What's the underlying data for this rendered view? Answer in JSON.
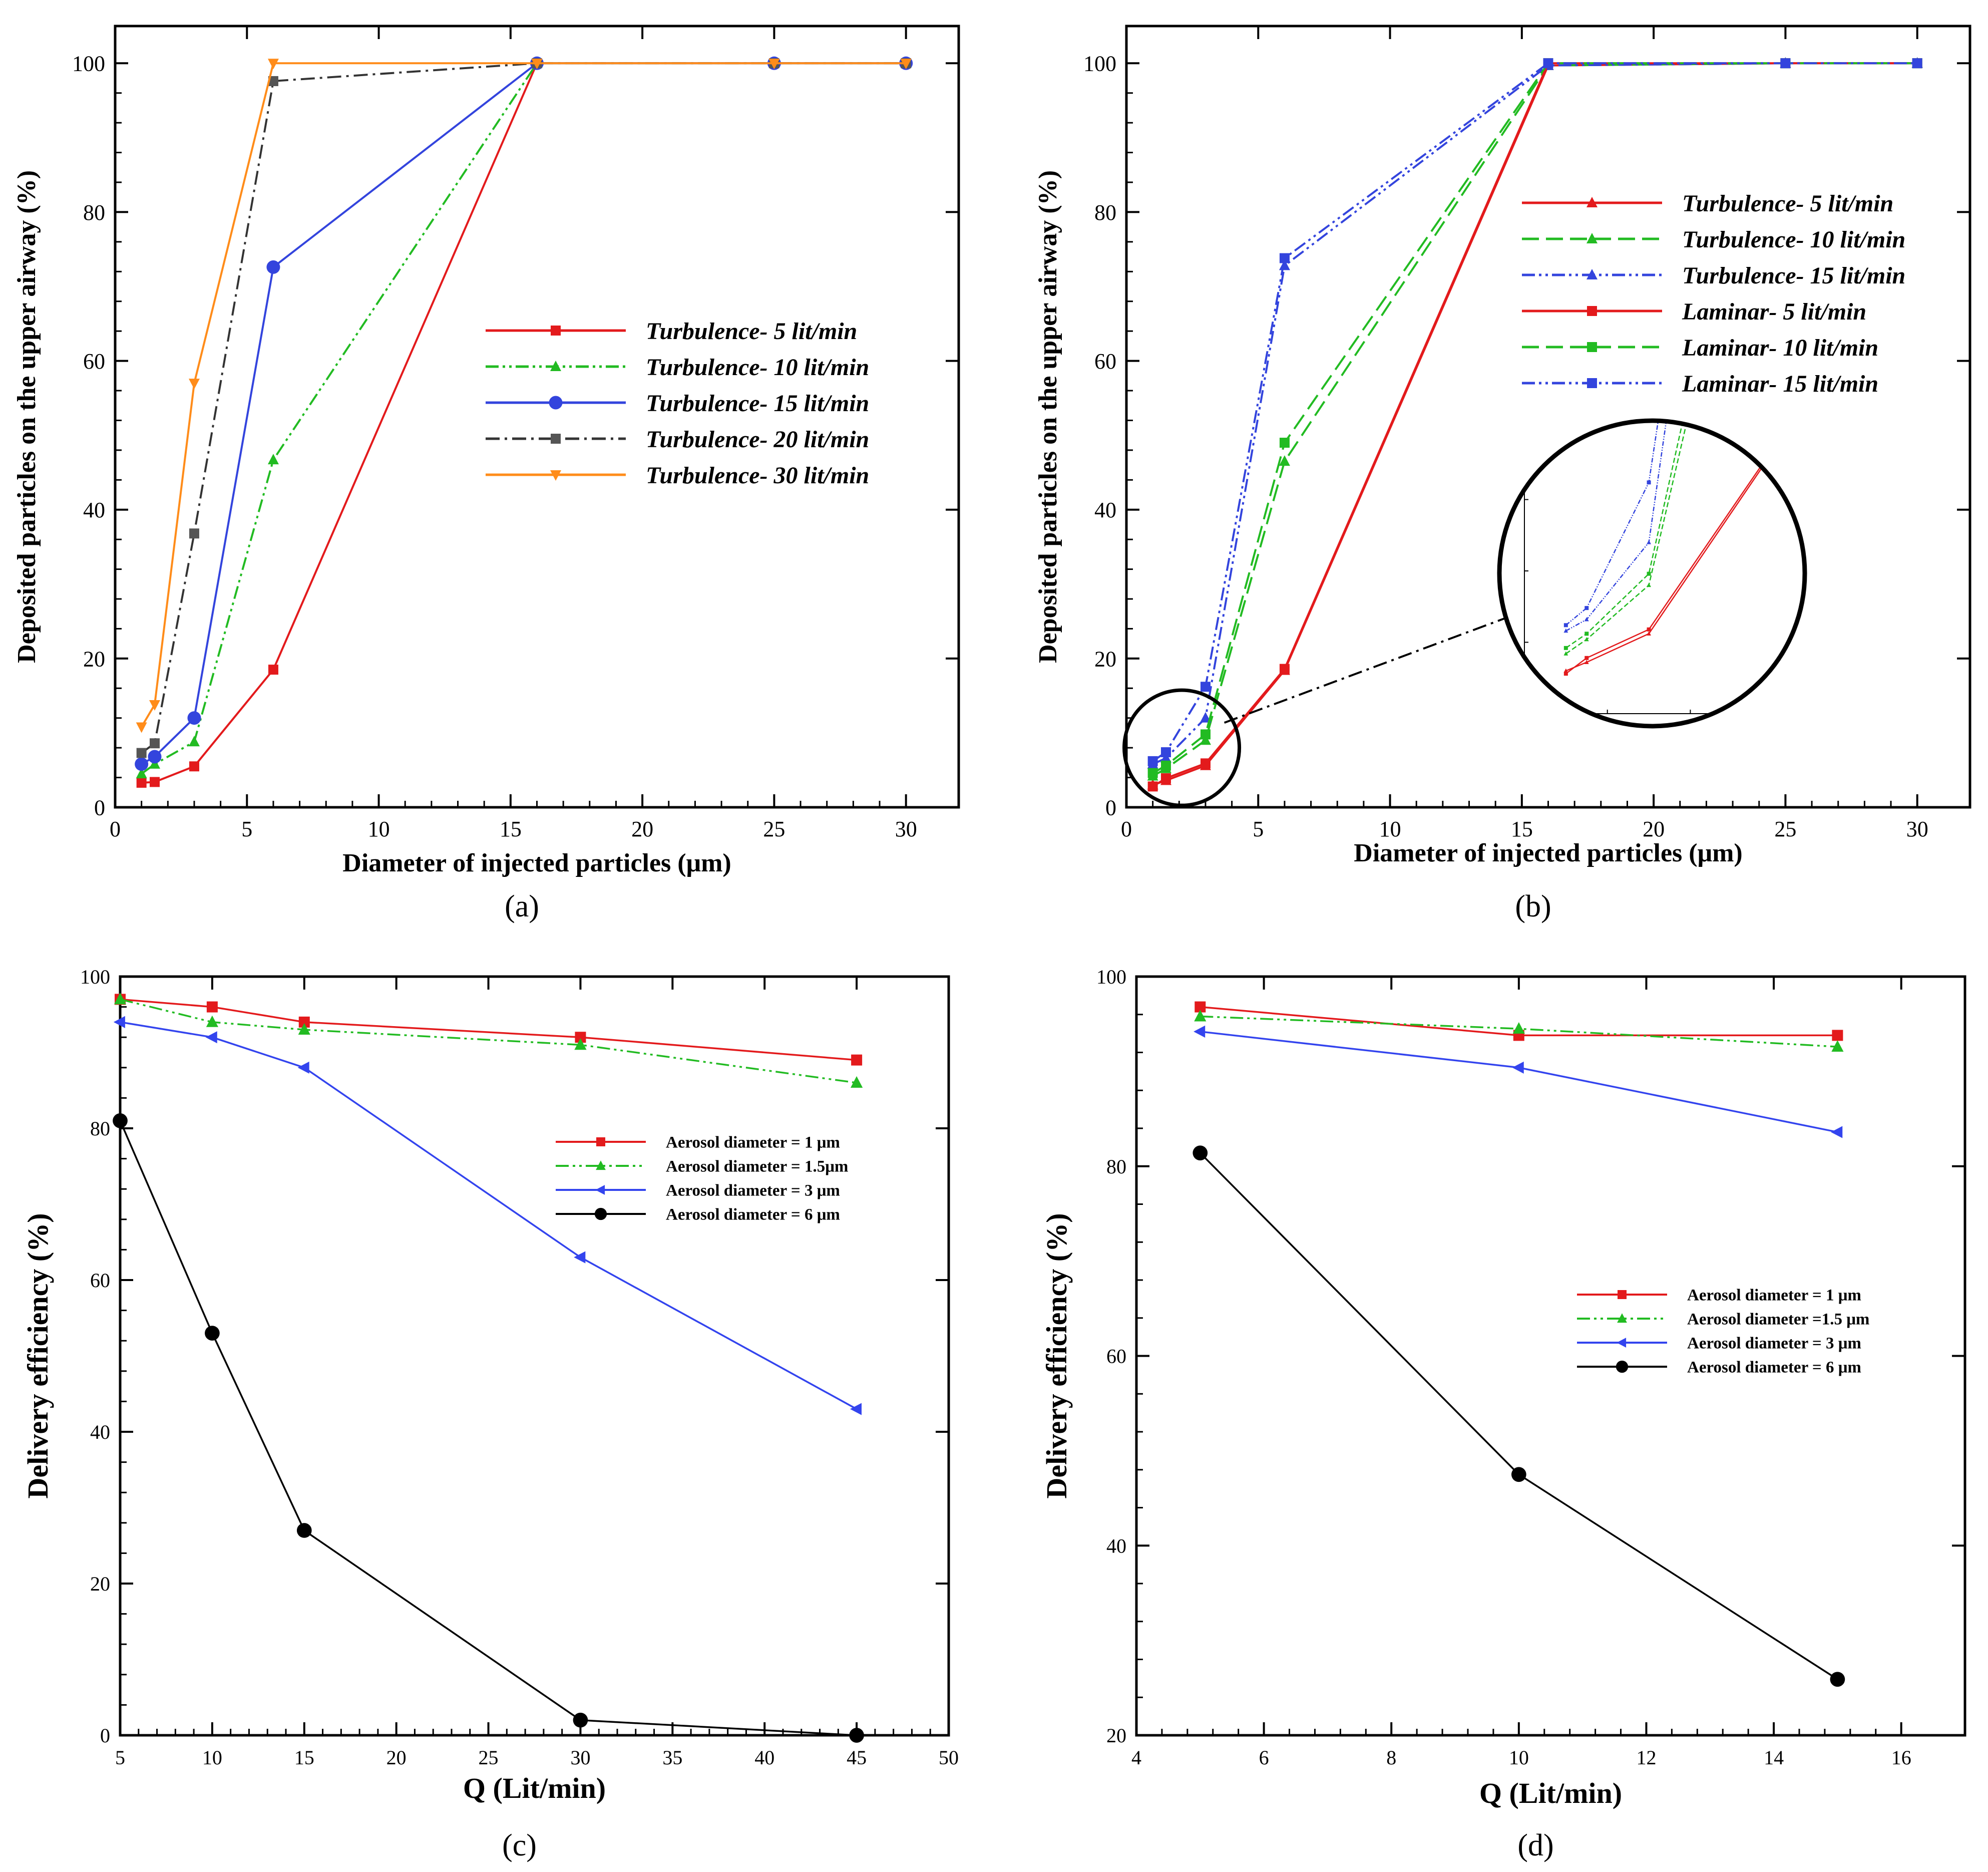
{
  "chart_data": [
    {
      "type": "line",
      "panel_label": "(a)",
      "xlabel": "Diameter of injected particles (μm)",
      "ylabel": "Deposited particles on the upper airway (%)",
      "xlim": [
        0,
        32
      ],
      "ylim": [
        0,
        105
      ],
      "xticks": [
        0,
        5,
        10,
        15,
        20,
        25,
        30
      ],
      "yticks": [
        0,
        20,
        40,
        60,
        80,
        100
      ],
      "legend_position": "center-right",
      "legend_style": "bold-italic",
      "series": [
        {
          "name": "Turbulence-  5 lit/min",
          "color": "#e31a1c",
          "marker": "square",
          "dash": "solid",
          "x": [
            1,
            1.5,
            3,
            6,
            16,
            25,
            30
          ],
          "y": [
            3.3,
            3.4,
            5.5,
            18.5,
            100,
            100,
            100
          ]
        },
        {
          "name": "Turbulence- 10 lit/min",
          "color": "#22bb22",
          "marker": "triangle-up",
          "dash": "dashdotdot",
          "x": [
            1,
            1.5,
            3,
            6,
            16,
            25,
            30
          ],
          "y": [
            4.5,
            5.8,
            8.8,
            46.7,
            100,
            100,
            100
          ]
        },
        {
          "name": "Turbulence- 15 lit/min",
          "color": "#3344dd",
          "marker": "circle",
          "dash": "solid",
          "x": [
            1,
            1.5,
            3,
            6,
            16,
            25,
            30
          ],
          "y": [
            5.8,
            6.8,
            12,
            72.6,
            100,
            100,
            100
          ]
        },
        {
          "name": "Turbulence- 20 lit/min",
          "color": "#333333",
          "marker": "square-gray",
          "dash": "dashdot",
          "x": [
            1,
            1.5,
            3,
            6,
            16,
            25,
            30
          ],
          "y": [
            7.3,
            8.6,
            36.8,
            97.6,
            100,
            100,
            100
          ]
        },
        {
          "name": "Turbulence- 30 lit/min",
          "color": "#ff8c1a",
          "marker": "triangle-down",
          "dash": "solid",
          "x": [
            1,
            1.5,
            3,
            6,
            16,
            25,
            30
          ],
          "y": [
            10.8,
            13.8,
            57,
            100,
            100,
            100,
            100
          ]
        }
      ]
    },
    {
      "type": "line",
      "panel_label": "(b)",
      "xlabel": "Diameter of injected particles (μm)",
      "ylabel": "Deposited particles on the upper airway (%)",
      "xlim": [
        0,
        32
      ],
      "ylim": [
        0,
        105
      ],
      "xticks": [
        0,
        5,
        10,
        15,
        20,
        25,
        30
      ],
      "yticks": [
        0,
        20,
        40,
        60,
        80,
        100
      ],
      "legend_position": "upper-right",
      "legend_style": "bold-italic",
      "inset": "magnified view of region around 1-3 μm",
      "series": [
        {
          "name": "Turbulence-  5 lit/min",
          "color": "#e31a1c",
          "marker": "triangle-up",
          "dash": "solid",
          "x": [
            1,
            1.5,
            3,
            6,
            16,
            25,
            30
          ],
          "y": [
            3.0,
            3.6,
            5.6,
            18.4,
            99.7,
            100,
            100
          ]
        },
        {
          "name": "Turbulence- 10 lit/min",
          "color": "#22bb22",
          "marker": "triangle-up",
          "dash": "longdash",
          "x": [
            1,
            1.5,
            3,
            6,
            16,
            25,
            30
          ],
          "y": [
            4.2,
            5.2,
            9.0,
            46.5,
            99.7,
            100,
            100
          ]
        },
        {
          "name": "Turbulence- 15 lit/min",
          "color": "#3344dd",
          "marker": "triangle-up",
          "dash": "dashdotdot",
          "x": [
            1,
            1.5,
            3,
            6,
            16,
            25,
            30
          ],
          "y": [
            5.8,
            6.6,
            12.0,
            72.8,
            99.7,
            100,
            100
          ]
        },
        {
          "name": "Laminar- 5 lit/min",
          "color": "#e31a1c",
          "marker": "square",
          "dash": "solid",
          "x": [
            1,
            1.5,
            3,
            6,
            16,
            25,
            30
          ],
          "y": [
            2.8,
            3.9,
            5.9,
            18.6,
            100,
            100,
            100
          ]
        },
        {
          "name": "Laminar- 10 lit/min",
          "color": "#22bb22",
          "marker": "square",
          "dash": "longdash",
          "x": [
            1,
            1.5,
            3,
            6,
            16,
            25,
            30
          ],
          "y": [
            4.6,
            5.6,
            9.8,
            49.0,
            100,
            100,
            100
          ]
        },
        {
          "name": "Laminar- 15 lit/min",
          "color": "#3344dd",
          "marker": "square",
          "dash": "dashdotdot",
          "x": [
            1,
            1.5,
            3,
            6,
            16,
            25,
            30
          ],
          "y": [
            6.2,
            7.4,
            16.2,
            73.8,
            100,
            100,
            100
          ]
        }
      ]
    },
    {
      "type": "line",
      "panel_label": "(c)",
      "xlabel": "Q (Lit/min)",
      "ylabel": "Delivery efficiency (%)",
      "xlim": [
        5,
        50
      ],
      "ylim": [
        0,
        100
      ],
      "xticks": [
        5,
        10,
        15,
        20,
        25,
        30,
        35,
        40,
        45,
        50
      ],
      "yticks": [
        0,
        20,
        40,
        60,
        80,
        100
      ],
      "legend_position": "upper-right",
      "legend_style": "bold",
      "series": [
        {
          "name": "Aerosol diameter = 1   μm",
          "color": "#e31a1c",
          "marker": "square",
          "dash": "solid",
          "x": [
            5,
            10,
            15,
            30,
            45
          ],
          "y": [
            97,
            96,
            94,
            92,
            89
          ]
        },
        {
          "name": "Aerosol diameter = 1.5μm",
          "color": "#22bb22",
          "marker": "triangle-up",
          "dash": "dashdotdot",
          "x": [
            5,
            10,
            15,
            30,
            45
          ],
          "y": [
            97,
            94,
            93,
            91,
            86
          ]
        },
        {
          "name": "Aerosol diameter = 3   μm",
          "color": "#3344ee",
          "marker": "triangle-left",
          "dash": "solid",
          "x": [
            5,
            10,
            15,
            30,
            45
          ],
          "y": [
            94,
            92,
            88,
            63,
            43
          ]
        },
        {
          "name": "Aerosol diameter = 6   μm",
          "color": "#000000",
          "marker": "circle",
          "dash": "solid",
          "x": [
            5,
            10,
            15,
            30,
            45
          ],
          "y": [
            81,
            53,
            27,
            2,
            0
          ]
        }
      ]
    },
    {
      "type": "line",
      "panel_label": "(d)",
      "xlabel": "Q (Lit/min)",
      "ylabel": "Delivery efficiency (%)",
      "xlim": [
        4,
        17
      ],
      "ylim": [
        20,
        100
      ],
      "xticks": [
        4,
        6,
        8,
        10,
        12,
        14,
        16
      ],
      "yticks": [
        20,
        40,
        60,
        80,
        100
      ],
      "legend_position": "center-right",
      "legend_style": "bold",
      "series": [
        {
          "name": "Aerosol diameter = 1   μm",
          "color": "#e31a1c",
          "marker": "square",
          "dash": "solid",
          "x": [
            5,
            10,
            15
          ],
          "y": [
            96.8,
            93.8,
            93.8
          ]
        },
        {
          "name": "Aerosol diameter =1.5 μm",
          "color": "#22bb22",
          "marker": "triangle-up",
          "dash": "dashdotdot",
          "x": [
            5,
            10,
            15
          ],
          "y": [
            95.8,
            94.5,
            92.6
          ]
        },
        {
          "name": "Aerosol diameter = 3   μm",
          "color": "#3344ee",
          "marker": "triangle-left",
          "dash": "solid",
          "x": [
            5,
            10,
            15
          ],
          "y": [
            94.2,
            90.4,
            83.6
          ]
        },
        {
          "name": "Aerosol diameter = 6   μm",
          "color": "#000000",
          "marker": "circle",
          "dash": "solid",
          "x": [
            5,
            10,
            15
          ],
          "y": [
            81.4,
            47.5,
            25.9
          ]
        }
      ]
    }
  ]
}
